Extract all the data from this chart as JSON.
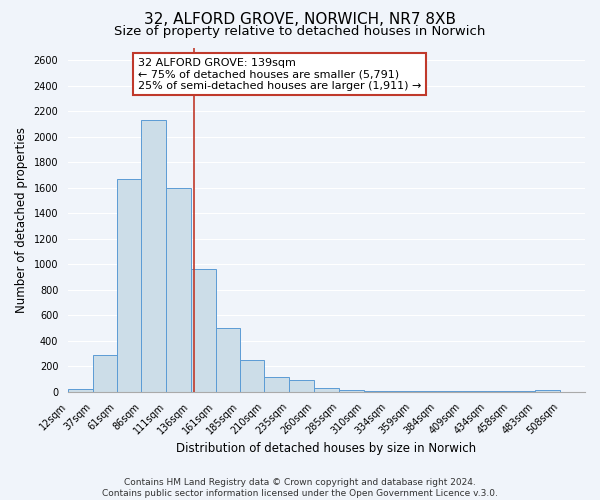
{
  "title": "32, ALFORD GROVE, NORWICH, NR7 8XB",
  "subtitle": "Size of property relative to detached houses in Norwich",
  "xlabel": "Distribution of detached houses by size in Norwich",
  "ylabel": "Number of detached properties",
  "bar_left_edges": [
    12,
    37,
    61,
    86,
    111,
    136,
    161,
    185,
    210,
    235,
    260,
    285,
    310,
    334,
    359,
    384,
    409,
    434,
    458,
    483
  ],
  "bar_widths": [
    25,
    24,
    25,
    25,
    25,
    25,
    24,
    25,
    25,
    25,
    25,
    25,
    24,
    25,
    25,
    25,
    25,
    24,
    25,
    25
  ],
  "bar_heights": [
    20,
    290,
    1670,
    2130,
    1600,
    960,
    500,
    250,
    120,
    95,
    30,
    15,
    10,
    5,
    5,
    5,
    5,
    5,
    5,
    15
  ],
  "tick_labels": [
    "12sqm",
    "37sqm",
    "61sqm",
    "86sqm",
    "111sqm",
    "136sqm",
    "161sqm",
    "185sqm",
    "210sqm",
    "235sqm",
    "260sqm",
    "285sqm",
    "310sqm",
    "334sqm",
    "359sqm",
    "384sqm",
    "409sqm",
    "434sqm",
    "458sqm",
    "483sqm",
    "508sqm"
  ],
  "ylim": [
    0,
    2700
  ],
  "yticks": [
    0,
    200,
    400,
    600,
    800,
    1000,
    1200,
    1400,
    1600,
    1800,
    2000,
    2200,
    2400,
    2600
  ],
  "bar_color": "#ccdde8",
  "bar_edge_color": "#5b9bd5",
  "vline_x": 139,
  "vline_color": "#c0392b",
  "annotation_title": "32 ALFORD GROVE: 139sqm",
  "annotation_line1": "← 75% of detached houses are smaller (5,791)",
  "annotation_line2": "25% of semi-detached houses are larger (1,911) →",
  "annotation_box_color": "#ffffff",
  "annotation_box_edge": "#c0392b",
  "footer1": "Contains HM Land Registry data © Crown copyright and database right 2024.",
  "footer2": "Contains public sector information licensed under the Open Government Licence v.3.0.",
  "bg_color": "#f0f4fa",
  "plot_bg_color": "#f0f4fa",
  "title_fontsize": 11,
  "subtitle_fontsize": 9.5,
  "axis_label_fontsize": 8.5,
  "tick_fontsize": 7,
  "annotation_fontsize": 8,
  "footer_fontsize": 6.5
}
